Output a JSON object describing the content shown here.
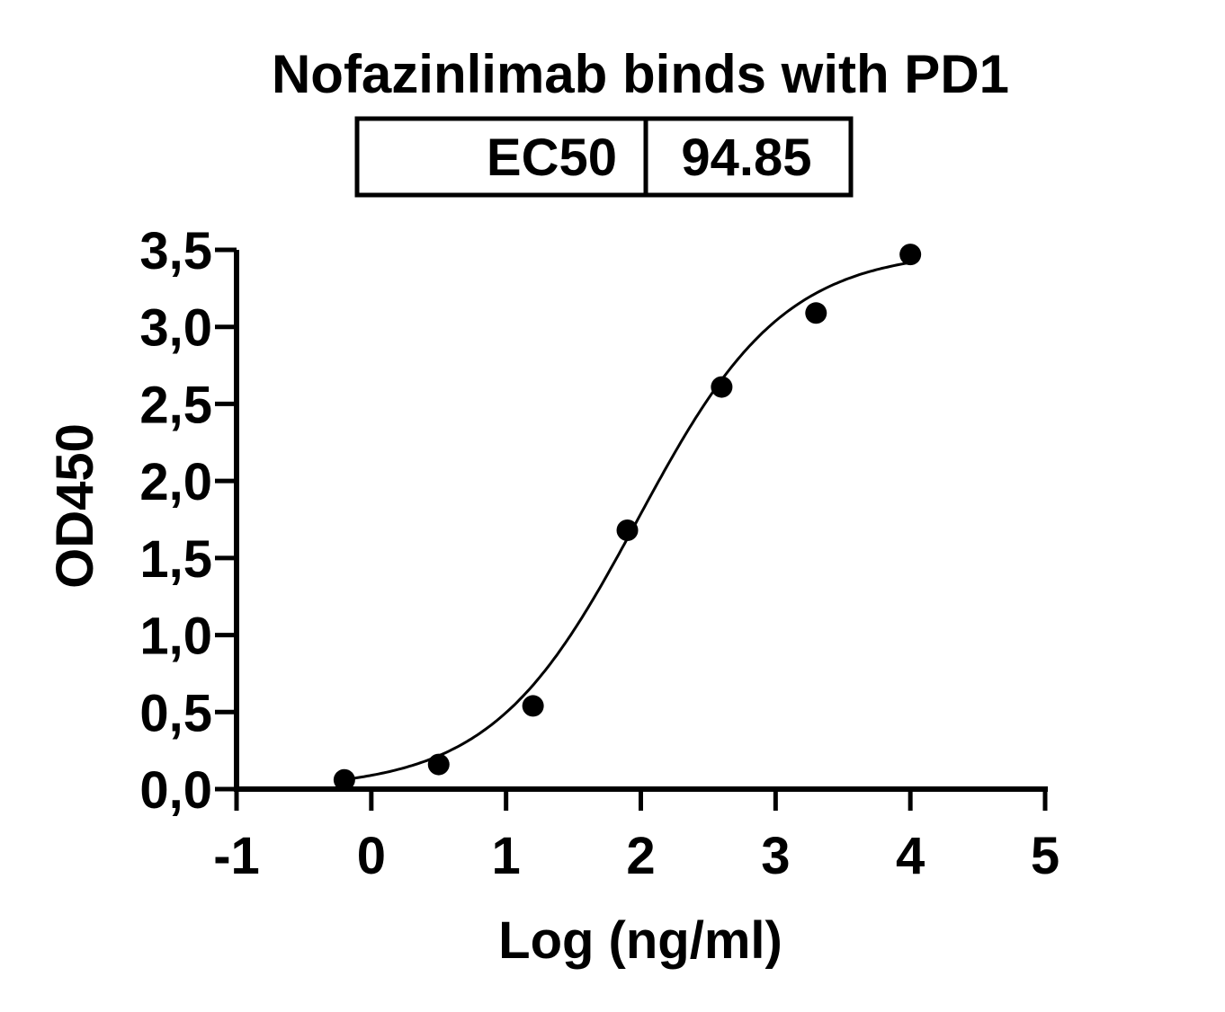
{
  "chart_data": {
    "type": "scatter",
    "title": "Nofazinlimab binds with PD1",
    "xlabel": "Log (ng/ml)",
    "ylabel": "OD450",
    "xlim": [
      -1,
      5
    ],
    "ylim": [
      0,
      3.5
    ],
    "x_ticks": [
      "-1",
      "0",
      "1",
      "2",
      "3",
      "4",
      "5"
    ],
    "y_ticks": [
      "0,0",
      "0,5",
      "1,0",
      "1,5",
      "2,0",
      "2,5",
      "3,0",
      "3,5"
    ],
    "grid": false,
    "legend": null,
    "series": [
      {
        "name": "Nofazinlimab",
        "x": [
          -0.2,
          0.5,
          1.2,
          1.9,
          2.6,
          3.3,
          4.0
        ],
        "y": [
          0.06,
          0.16,
          0.54,
          1.68,
          2.61,
          3.09,
          3.47
        ],
        "marker": "filled-circle",
        "color": "#000000"
      }
    ],
    "fit": {
      "model": "4PL sigmoidal",
      "bottom": 0,
      "top": 3.5,
      "log_ec50": 1.977,
      "hill": 0.8,
      "x_range": [
        -0.2,
        4.0
      ]
    },
    "annotations": {
      "table": {
        "label": "EC50",
        "value": "94.85"
      }
    }
  }
}
